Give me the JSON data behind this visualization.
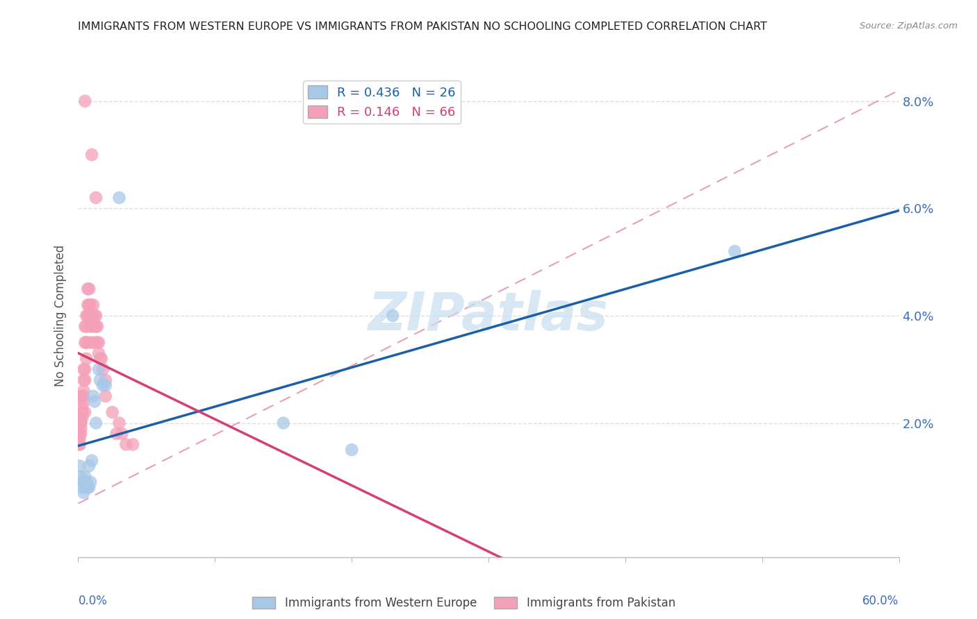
{
  "title": "IMMIGRANTS FROM WESTERN EUROPE VS IMMIGRANTS FROM PAKISTAN NO SCHOOLING COMPLETED CORRELATION CHART",
  "source": "Source: ZipAtlas.com",
  "ylabel": "No Schooling Completed",
  "right_yticklabels": [
    "",
    "2.0%",
    "4.0%",
    "6.0%",
    "8.0%"
  ],
  "right_ytick_vals": [
    0.0,
    0.02,
    0.04,
    0.06,
    0.08
  ],
  "legend_blue_r": "R = 0.436",
  "legend_blue_n": "N = 26",
  "legend_pink_r": "R = 0.146",
  "legend_pink_n": "N = 66",
  "blue_color": "#a8c8e8",
  "pink_color": "#f4a0b8",
  "blue_line_color": "#1a5fa8",
  "pink_line_color": "#d44070",
  "dash_line_color": "#e8a0b0",
  "watermark_color": "#c8ddf0",
  "xmin": 0.0,
  "xmax": 0.6,
  "ymin": -0.005,
  "ymax": 0.085,
  "blue_x": [
    0.001,
    0.002,
    0.003,
    0.003,
    0.004,
    0.004,
    0.005,
    0.005,
    0.006,
    0.007,
    0.008,
    0.008,
    0.009,
    0.01,
    0.011,
    0.012,
    0.013,
    0.015,
    0.016,
    0.018,
    0.02,
    0.03,
    0.15,
    0.2,
    0.23,
    0.48
  ],
  "blue_y": [
    0.012,
    0.01,
    0.009,
    0.008,
    0.009,
    0.007,
    0.008,
    0.01,
    0.009,
    0.008,
    0.008,
    0.012,
    0.009,
    0.013,
    0.025,
    0.024,
    0.02,
    0.03,
    0.028,
    0.027,
    0.027,
    0.062,
    0.02,
    0.015,
    0.04,
    0.052
  ],
  "pink_x": [
    0.001,
    0.001,
    0.001,
    0.001,
    0.002,
    0.002,
    0.002,
    0.002,
    0.002,
    0.003,
    0.003,
    0.003,
    0.003,
    0.003,
    0.003,
    0.004,
    0.004,
    0.004,
    0.004,
    0.004,
    0.005,
    0.005,
    0.005,
    0.005,
    0.005,
    0.006,
    0.006,
    0.006,
    0.006,
    0.007,
    0.007,
    0.007,
    0.007,
    0.008,
    0.008,
    0.008,
    0.009,
    0.009,
    0.01,
    0.01,
    0.01,
    0.011,
    0.011,
    0.012,
    0.012,
    0.012,
    0.013,
    0.013,
    0.014,
    0.014,
    0.015,
    0.015,
    0.016,
    0.017,
    0.018,
    0.02,
    0.02,
    0.025,
    0.028,
    0.03,
    0.032,
    0.035,
    0.04,
    0.01,
    0.013,
    0.005
  ],
  "pink_y": [
    0.016,
    0.017,
    0.016,
    0.018,
    0.02,
    0.018,
    0.019,
    0.02,
    0.022,
    0.022,
    0.022,
    0.021,
    0.025,
    0.025,
    0.023,
    0.024,
    0.025,
    0.026,
    0.028,
    0.03,
    0.022,
    0.028,
    0.03,
    0.035,
    0.038,
    0.032,
    0.035,
    0.038,
    0.04,
    0.035,
    0.04,
    0.042,
    0.045,
    0.04,
    0.042,
    0.045,
    0.038,
    0.042,
    0.035,
    0.038,
    0.04,
    0.04,
    0.042,
    0.035,
    0.038,
    0.04,
    0.038,
    0.04,
    0.035,
    0.038,
    0.033,
    0.035,
    0.032,
    0.032,
    0.03,
    0.025,
    0.028,
    0.022,
    0.018,
    0.02,
    0.018,
    0.016,
    0.016,
    0.07,
    0.062,
    0.08
  ]
}
